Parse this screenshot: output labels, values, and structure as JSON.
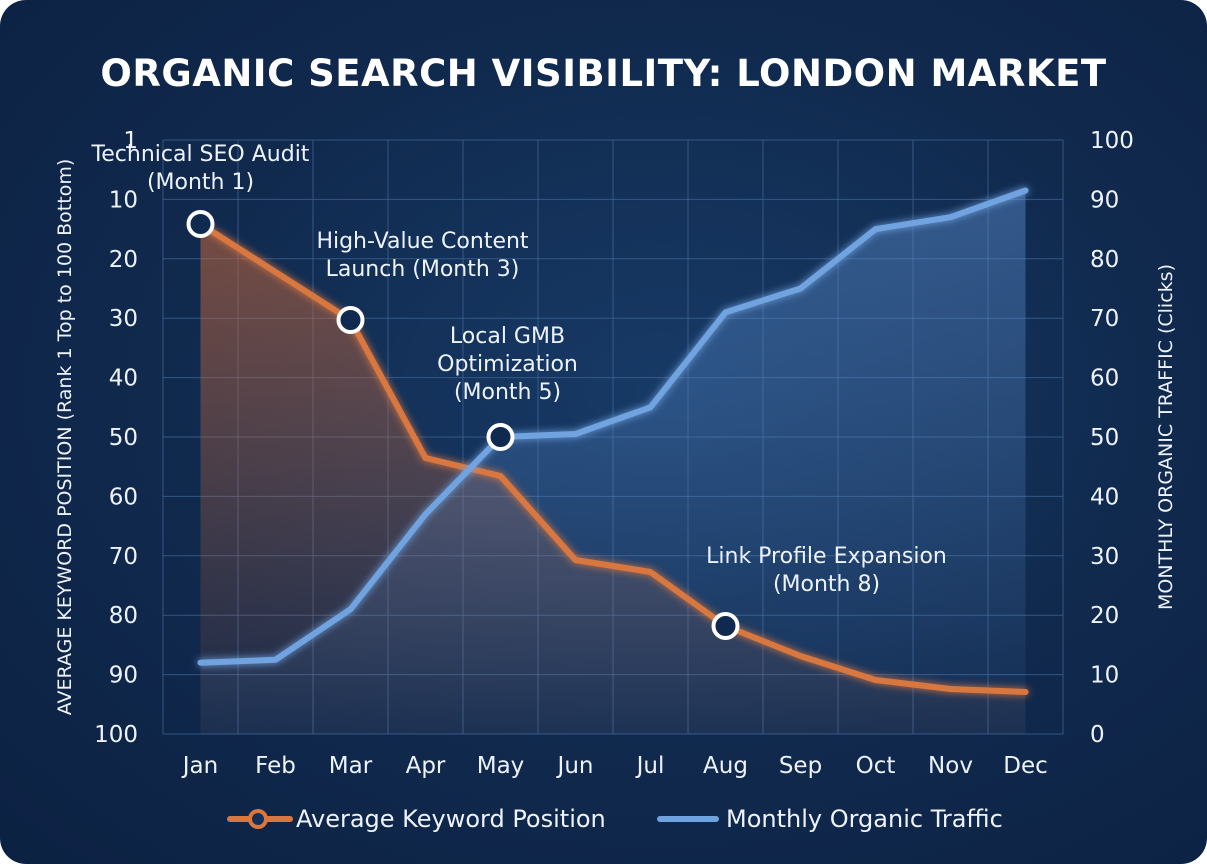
{
  "chart_data": {
    "type": "line",
    "title": "ORGANIC SEARCH VISIBILITY: LONDON MARKET",
    "categories": [
      "Jan",
      "Feb",
      "Mar",
      "Apr",
      "May",
      "Jun",
      "Jul",
      "Aug",
      "Sep",
      "Oct",
      "Nov",
      "Dec"
    ],
    "y_left": {
      "label": "AVERAGE KEYWORD POSITION (Rank 1 Top to 100 Bottom)",
      "range": [
        1,
        100
      ],
      "inverted": true,
      "ticks": [
        "1",
        "10",
        "20",
        "30",
        "40",
        "50",
        "60",
        "70",
        "80",
        "90",
        "100"
      ]
    },
    "y_right": {
      "label": "MONTHLY ORGANIC TRAFFIC (Clicks)",
      "range": [
        0,
        100
      ],
      "ticks": [
        "100",
        "90",
        "80",
        "70",
        "60",
        "50",
        "40",
        "30",
        "20",
        "10",
        "0"
      ]
    },
    "series": [
      {
        "name": "Average Keyword Position",
        "axis": "left",
        "color": "#d9773f",
        "values": [
          15,
          23,
          31,
          54,
          57,
          71,
          73,
          82,
          87,
          91,
          92.5,
          93
        ]
      },
      {
        "name": "Monthly Organic Traffic",
        "axis": "right",
        "color": "#6fa3e0",
        "values": [
          12,
          12.5,
          21,
          37,
          50,
          50.5,
          55,
          71,
          75,
          85,
          87,
          91.5
        ]
      }
    ],
    "annotations": [
      {
        "lines": [
          "Technical SEO Audit",
          "(Month 1)"
        ],
        "month": "Jan"
      },
      {
        "lines": [
          "High-Value Content",
          "Launch (Month 3)"
        ],
        "month": "Mar"
      },
      {
        "lines": [
          "Local GMB",
          "Optimization",
          "(Month 5)"
        ],
        "month": "May"
      },
      {
        "lines": [
          "Link Profile Expansion",
          "(Month 8)"
        ],
        "month": "Aug"
      }
    ],
    "grid": true,
    "legend_position": "bottom"
  }
}
